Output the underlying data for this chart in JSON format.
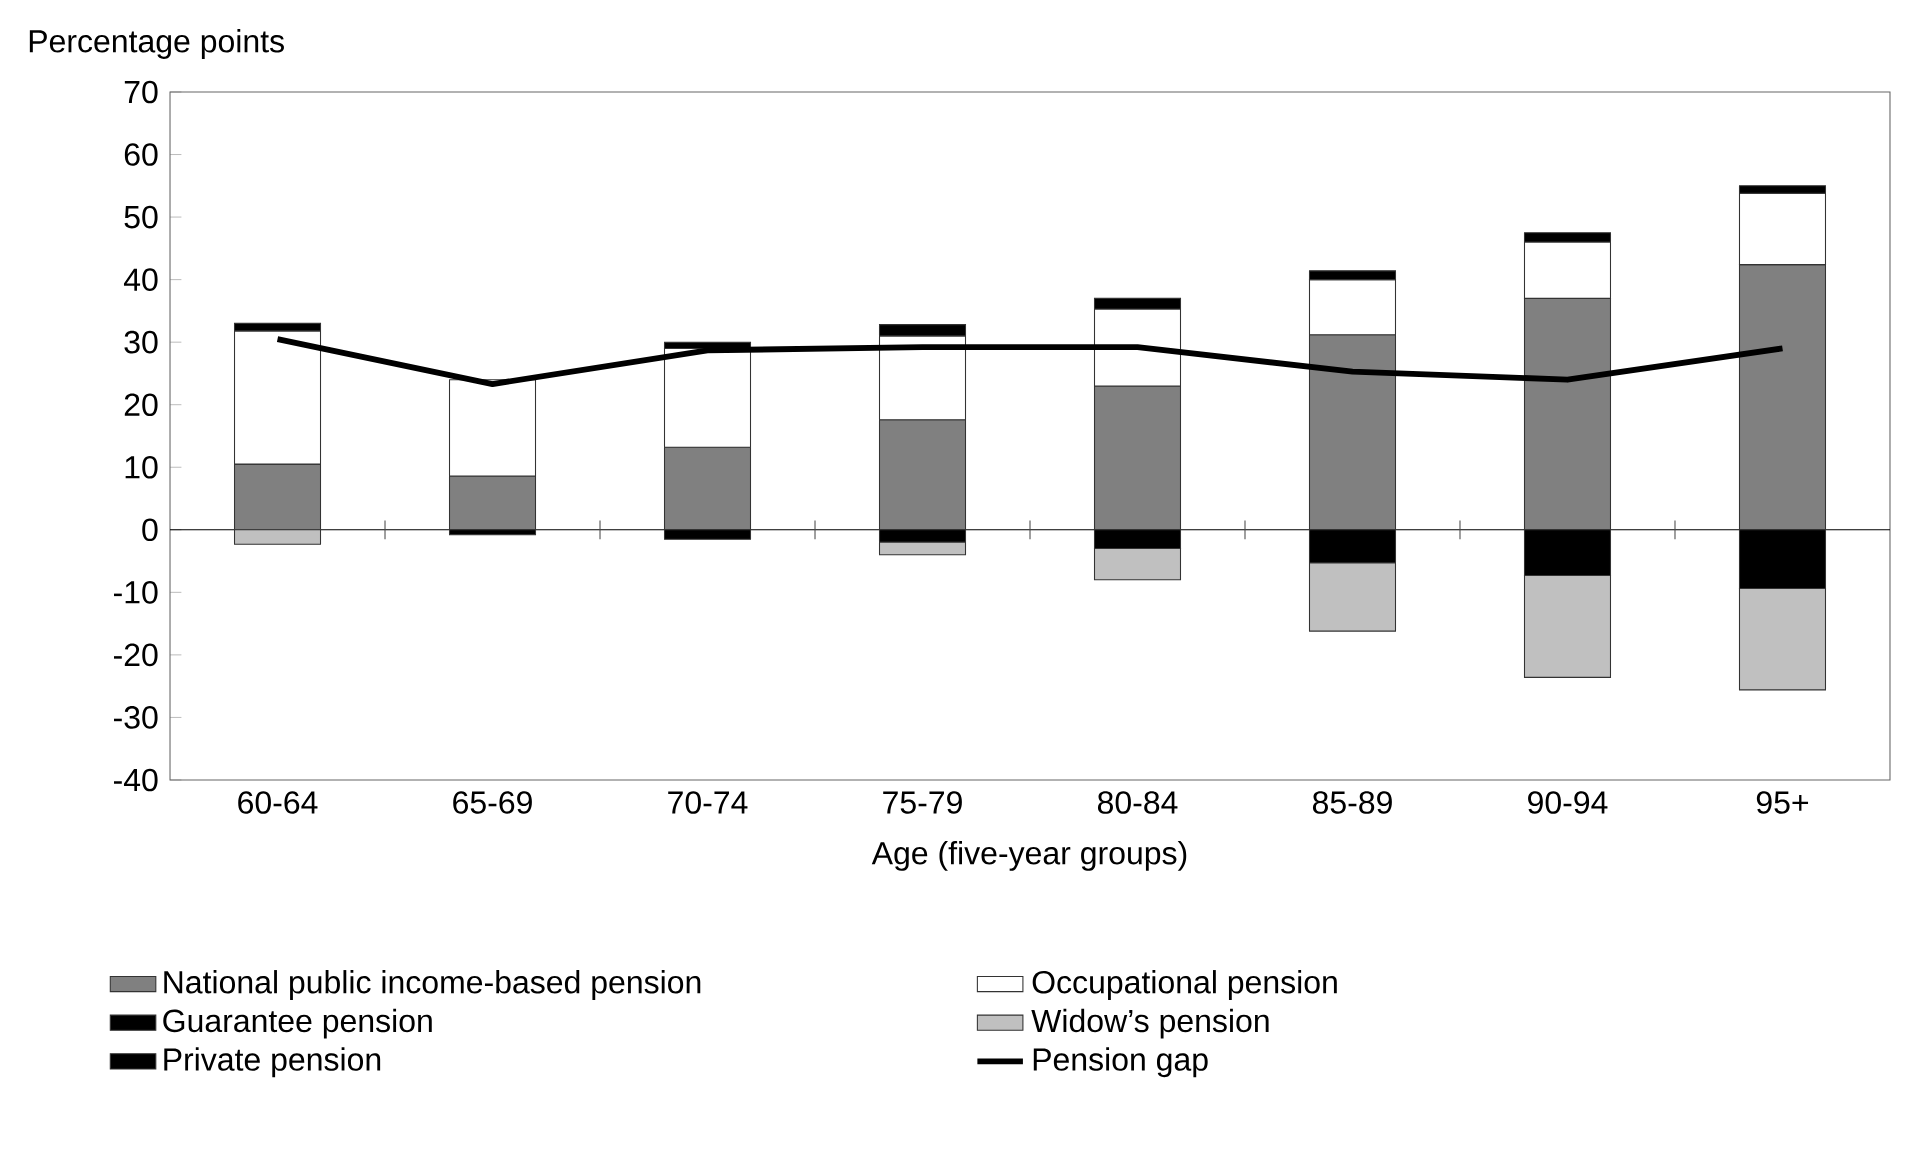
{
  "chart_data": {
    "type": "bar",
    "stacked": true,
    "ylabel": "Percentage points",
    "xlabel": "Age (five-year groups)",
    "categories": [
      "60-64",
      "65-69",
      "70-74",
      "75-79",
      "80-84",
      "85-89",
      "90-94",
      "95+"
    ],
    "ylim": [
      -40,
      70
    ],
    "yticks": [
      -40,
      -30,
      -20,
      -10,
      0,
      10,
      20,
      30,
      40,
      50,
      60,
      70
    ],
    "legend": "bottom",
    "series": [
      {
        "name": "National public income-based pension",
        "color": "#808080",
        "values": [
          10.5,
          8.6,
          13.2,
          17.6,
          23,
          31.2,
          37,
          42.4
        ]
      },
      {
        "name": "Occupational pension",
        "color": "#ffffff",
        "values": [
          21.3,
          15.4,
          15.8,
          13.4,
          12.3,
          8.8,
          9,
          11.4
        ]
      },
      {
        "name": "Guarantee pension",
        "color": "#000000",
        "values": [
          0,
          -0.8,
          -1.5,
          -2,
          -3,
          -5.3,
          -7.3,
          -9.4
        ]
      },
      {
        "name": "Widow’s pension",
        "color": "#c0c0c0",
        "values": [
          -2.3,
          0,
          0,
          -2,
          -5,
          -10.9,
          -16.3,
          -16.2
        ]
      },
      {
        "name": "Private pension",
        "color": "#000000",
        "values": [
          1.2,
          null,
          1,
          1.8,
          1.7,
          1.4,
          1.5,
          1.2
        ]
      },
      {
        "name": "Pension gap",
        "type": "line",
        "color": "#000000",
        "values": [
          30.5,
          23.3,
          28.7,
          29.2,
          29.2,
          25.3,
          24,
          29
        ]
      }
    ]
  }
}
